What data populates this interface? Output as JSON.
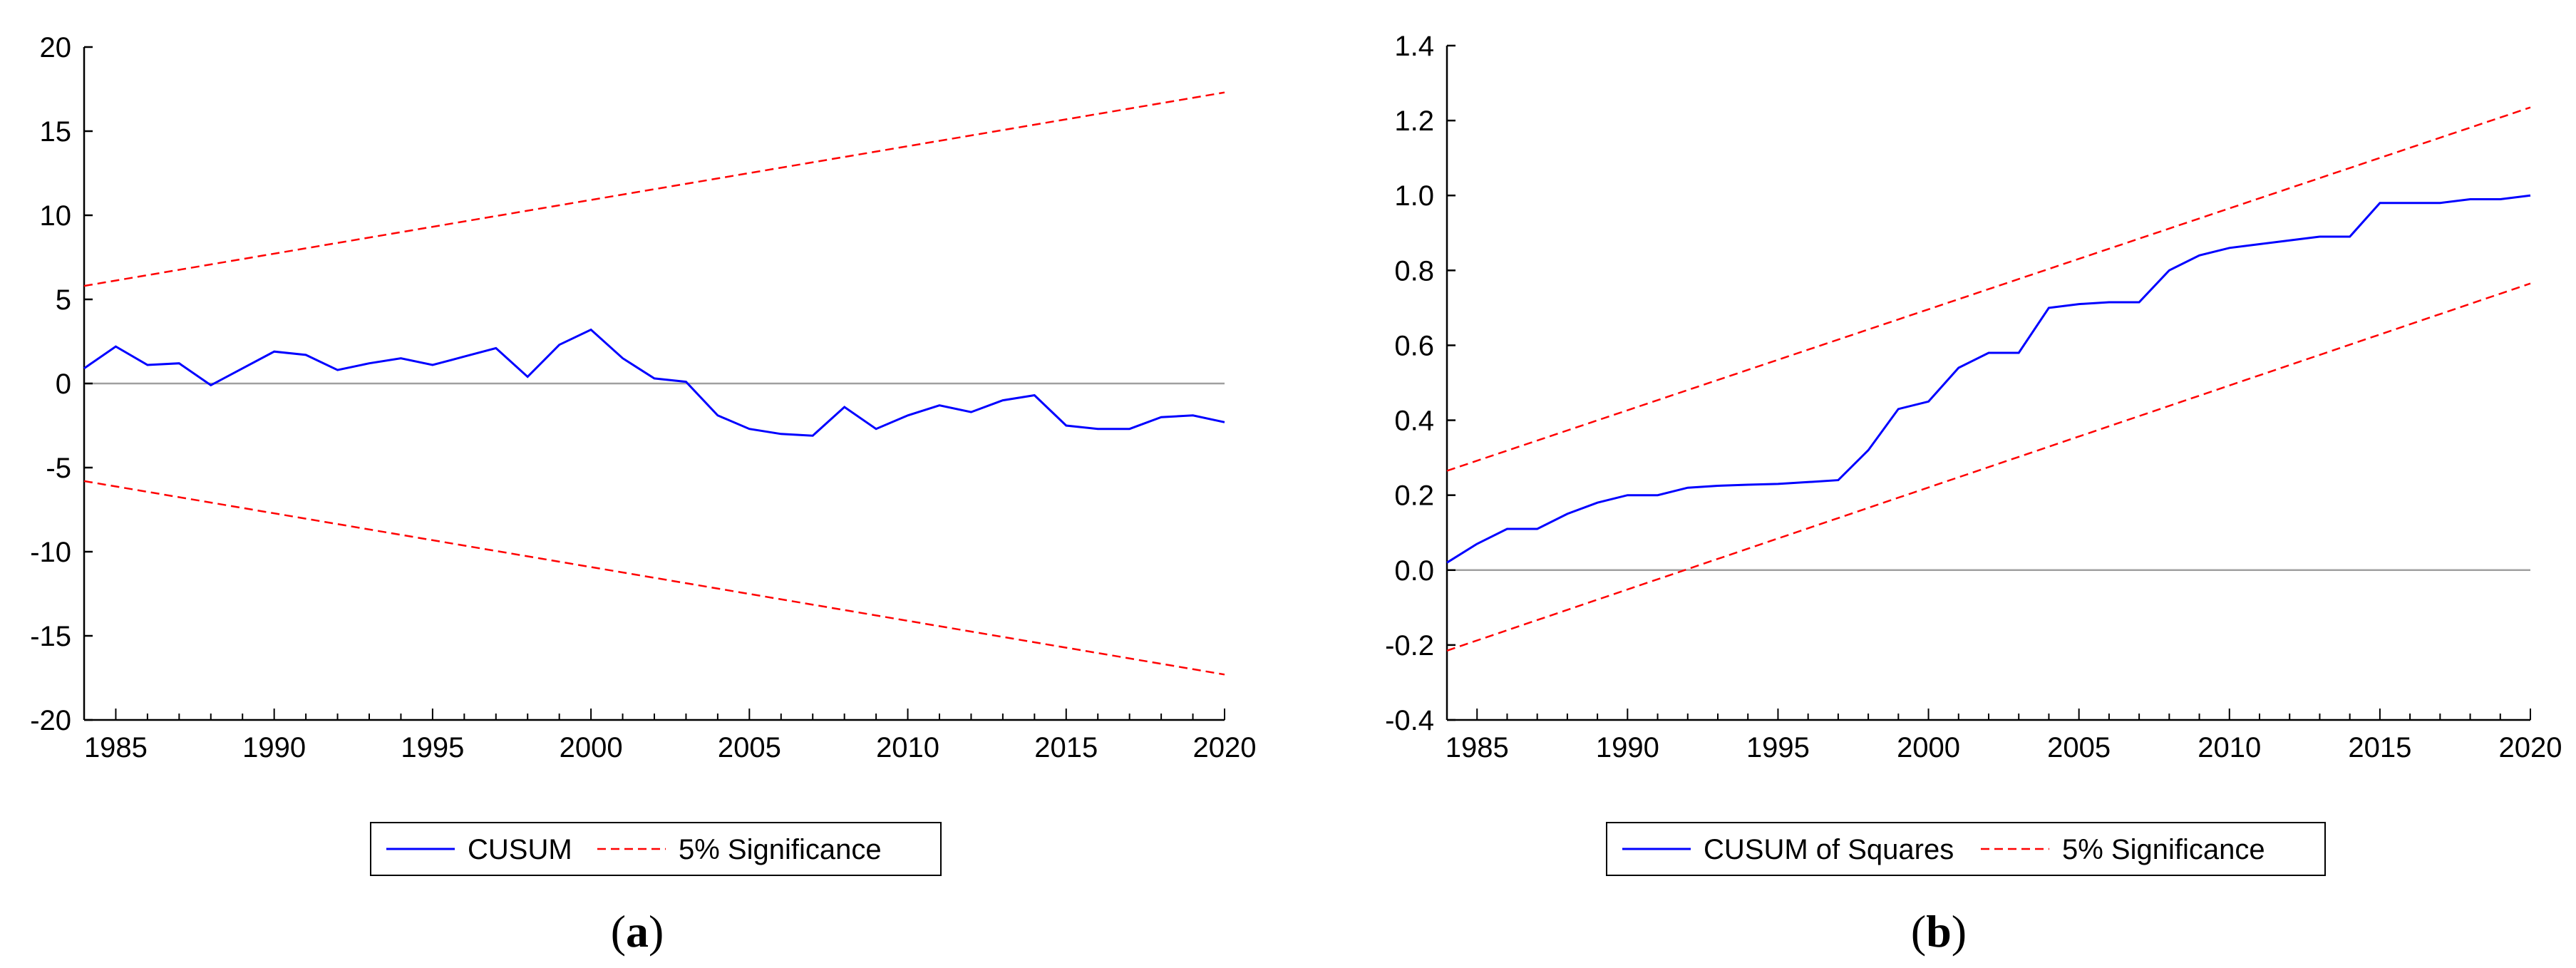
{
  "chart_data": [
    {
      "type": "line",
      "panel_label": "a",
      "title": "",
      "xlabel": "",
      "ylabel": "",
      "xlim": [
        1984,
        2020
      ],
      "ylim": [
        -20,
        20
      ],
      "xticks": [
        1985,
        1990,
        1995,
        2000,
        2005,
        2010,
        2015,
        2020
      ],
      "yticks": [
        -20,
        -15,
        -10,
        -5,
        0,
        5,
        10,
        15,
        20
      ],
      "zero_line": 0,
      "series": [
        {
          "name": "CUSUM",
          "color": "#0000ff",
          "style": "solid",
          "x": [
            1984,
            1985,
            1986,
            1987,
            1988,
            1989,
            1990,
            1991,
            1992,
            1993,
            1994,
            1995,
            1996,
            1997,
            1998,
            1999,
            2000,
            2001,
            2002,
            2003,
            2004,
            2005,
            2006,
            2007,
            2008,
            2009,
            2010,
            2011,
            2012,
            2013,
            2014,
            2015,
            2016,
            2017,
            2018,
            2019,
            2020
          ],
          "y": [
            0.9,
            2.2,
            1.1,
            1.2,
            -0.1,
            0.9,
            1.9,
            1.7,
            0.8,
            1.2,
            1.5,
            1.1,
            1.6,
            2.1,
            0.4,
            2.3,
            3.2,
            1.5,
            0.3,
            0.1,
            -1.9,
            -2.7,
            -3.0,
            -3.1,
            -1.4,
            -2.7,
            -1.9,
            -1.3,
            -1.7,
            -1.0,
            -0.7,
            -2.5,
            -2.7,
            -2.7,
            -2.0,
            -1.9,
            -2.3
          ]
        },
        {
          "name": "5% Significance",
          "color": "#ff0000",
          "style": "dashed",
          "x": [
            1984,
            2020
          ],
          "y": [
            5.8,
            17.3
          ]
        },
        {
          "name": "5% Significance lower",
          "color": "#ff0000",
          "style": "dashed",
          "x": [
            1984,
            2020
          ],
          "y": [
            -5.8,
            -17.3
          ]
        }
      ],
      "legend": [
        "CUSUM",
        "5% Significance"
      ]
    },
    {
      "type": "line",
      "panel_label": "b",
      "title": "",
      "xlabel": "",
      "ylabel": "",
      "xlim": [
        1984,
        2020
      ],
      "ylim": [
        -0.4,
        1.4
      ],
      "xticks": [
        1985,
        1990,
        1995,
        2000,
        2005,
        2010,
        2015,
        2020
      ],
      "yticks": [
        -0.4,
        -0.2,
        0.0,
        0.2,
        0.4,
        0.6,
        0.8,
        1.0,
        1.2,
        1.4
      ],
      "zero_line": 0,
      "series": [
        {
          "name": "CUSUM of Squares",
          "color": "#0000ff",
          "style": "solid",
          "x": [
            1984,
            1985,
            1986,
            1987,
            1988,
            1989,
            1990,
            1991,
            1992,
            1993,
            1994,
            1995,
            1996,
            1997,
            1998,
            1999,
            2000,
            2001,
            2002,
            2003,
            2004,
            2005,
            2006,
            2007,
            2008,
            2009,
            2010,
            2011,
            2012,
            2013,
            2014,
            2015,
            2016,
            2017,
            2018,
            2019,
            2020
          ],
          "y": [
            0.02,
            0.07,
            0.11,
            0.11,
            0.15,
            0.18,
            0.2,
            0.2,
            0.22,
            0.225,
            0.228,
            0.23,
            0.235,
            0.24,
            0.32,
            0.43,
            0.45,
            0.54,
            0.58,
            0.58,
            0.7,
            0.71,
            0.715,
            0.715,
            0.8,
            0.84,
            0.86,
            0.87,
            0.88,
            0.89,
            0.89,
            0.98,
            0.98,
            0.98,
            0.99,
            0.99,
            1.0
          ]
        },
        {
          "name": "5% Significance",
          "color": "#ff0000",
          "style": "dashed",
          "x": [
            1984,
            2020
          ],
          "y": [
            0.265,
            1.235
          ]
        },
        {
          "name": "5% Significance lower",
          "color": "#ff0000",
          "style": "dashed",
          "x": [
            1984,
            2020
          ],
          "y": [
            -0.215,
            0.765
          ]
        }
      ],
      "legend": [
        "CUSUM of Squares",
        "5% Significance"
      ]
    }
  ]
}
